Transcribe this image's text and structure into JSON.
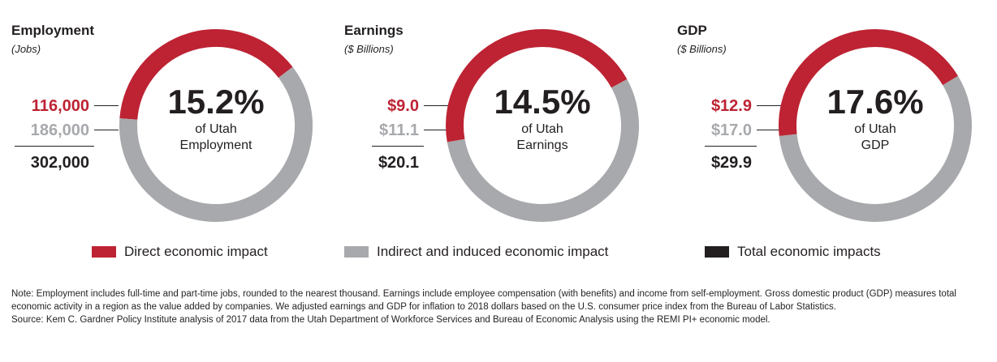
{
  "colors": {
    "direct": "#bd2333",
    "indirect": "#a7a9ac",
    "total": "#231f20"
  },
  "chart_data": [
    {
      "type": "pie",
      "title": "Employment",
      "subtitle": "(Jobs)",
      "center_value": "15.2%",
      "center_caption": [
        "of Utah",
        "Employment"
      ],
      "categories": [
        "Direct economic impact",
        "Indirect and induced economic impact"
      ],
      "values": [
        116000,
        186000
      ],
      "value_labels": [
        "116,000",
        "186,000"
      ],
      "total": 302000,
      "total_label": "302,000"
    },
    {
      "type": "pie",
      "title": "Earnings",
      "subtitle": "($ Billions)",
      "center_value": "14.5%",
      "center_caption": [
        "of Utah",
        "Earnings"
      ],
      "categories": [
        "Direct economic impact",
        "Indirect and induced economic impact"
      ],
      "values": [
        9.0,
        11.1
      ],
      "value_labels": [
        "$9.0",
        "$11.1"
      ],
      "total": 20.1,
      "total_label": "$20.1"
    },
    {
      "type": "pie",
      "title": "GDP",
      "subtitle": "($ Billions)",
      "center_value": "17.6%",
      "center_caption": [
        "of Utah",
        "GDP"
      ],
      "categories": [
        "Direct economic impact",
        "Indirect and induced economic impact"
      ],
      "values": [
        12.9,
        17.0
      ],
      "value_labels": [
        "$12.9",
        "$17.0"
      ],
      "total": 29.9,
      "total_label": "$29.9"
    }
  ],
  "legend": [
    {
      "label": "Direct economic impact",
      "color": "#bd2333"
    },
    {
      "label": "Indirect and induced economic impact",
      "color": "#a7a9ac"
    },
    {
      "label": "Total economic impacts",
      "color": "#231f20"
    }
  ],
  "notes": {
    "note": "Note: Employment includes full-time and part-time jobs, rounded to the nearest thousand. Earnings include employee compensation (with benefits) and income from self-employment. Gross domestic product (GDP) measures total economic activity in a region as the value added by companies. We adjusted earnings and GDP for inflation to 2018 dollars based on the U.S. consumer price index from the Bureau of Labor Statistics.",
    "source": "Source: Kem C. Gardner Policy Institute analysis of 2017 data from the Utah Department of Workforce Services and Bureau of Economic Analysis using the REMI PI+ economic model."
  }
}
